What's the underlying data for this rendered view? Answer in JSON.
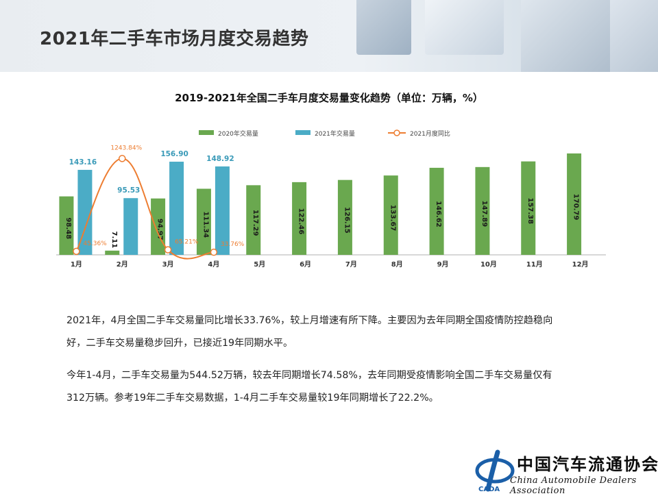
{
  "page": {
    "title": "2021年二手车市场月度交易趋势"
  },
  "chart_data": {
    "type": "bar",
    "title": "2019-2021年全国二手车月度交易量变化趋势（单位：万辆，%）",
    "categories": [
      "1月",
      "2月",
      "3月",
      "4月",
      "5月",
      "6月",
      "7月",
      "8月",
      "9月",
      "10月",
      "11月",
      "12月"
    ],
    "series": [
      {
        "name": "2020年交易量",
        "type": "bar",
        "color": "#6aa84f",
        "values": [
          98.48,
          7.11,
          94.97,
          111.34,
          117.29,
          122.46,
          126.15,
          133.67,
          146.62,
          147.89,
          157.38,
          170.79
        ],
        "labels": [
          "98.48",
          "7.11",
          "94.97",
          "111.34",
          "117.29",
          "122.46",
          "126.15",
          "133.67",
          "146.62",
          "147.89",
          "157.38",
          "170.79"
        ]
      },
      {
        "name": "2021年交易量",
        "type": "bar",
        "color": "#4bacc6",
        "values": [
          143.16,
          95.53,
          156.9,
          148.92,
          null,
          null,
          null,
          null,
          null,
          null,
          null,
          null
        ],
        "labels": [
          "143.16",
          "95.53",
          "156.90",
          "148.92"
        ]
      },
      {
        "name": "2021月度同比",
        "type": "line",
        "color": "#ed7d31",
        "values": [
          45.36,
          1243.84,
          65.21,
          33.76,
          null,
          null,
          null,
          null,
          null,
          null,
          null,
          null
        ],
        "labels": [
          "45.36%",
          "1243.84%",
          "65.21%",
          "33.76%"
        ]
      }
    ],
    "ylim": [
      0,
      180
    ],
    "y2lim": [
      0,
      1380
    ],
    "grid": false,
    "legend": "top"
  },
  "text": {
    "para1_line1": "2021年，4月全国二手车交易量同比增长33.76%，较上月增速有所下降。主要因为去年同期全国疫情防控趋稳向",
    "para1_line2": "好，二手车交易量稳步回升，已接近19年同期水平。",
    "para2_line1": "今年1-4月，二手车交易量为544.52万辆，较去年同期增长74.58%，去年同期受疫情影响全国二手车交易量仅有",
    "para2_line2": "312万辆。参考19年二手车交易数据，1-4月二手车交易量较19年同期增长了22.2%。"
  },
  "logo": {
    "cn": "中国汽车流通协会",
    "en": "China Automobile Dealers Association",
    "mark_text": "CADA"
  }
}
